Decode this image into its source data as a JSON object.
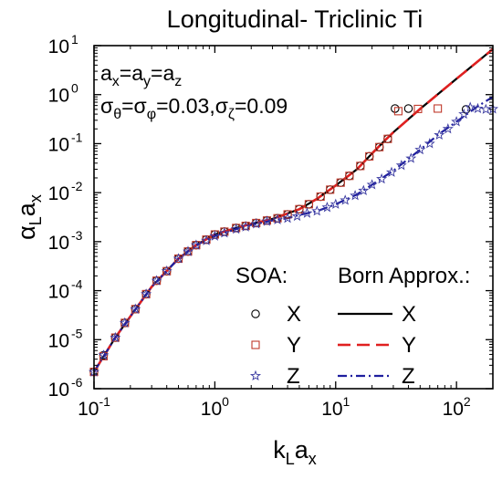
{
  "chart_data": {
    "type": "scatter",
    "title": "Longitudinal- Triclinic Ti",
    "annotation": {
      "line1": {
        "base": "a",
        "parts": [
          [
            "x",
            "=a"
          ],
          [
            "y",
            "=a"
          ],
          [
            "z",
            ""
          ]
        ]
      },
      "line2": {
        "sym": "σ",
        "parts": [
          [
            "θ",
            "=σ"
          ],
          [
            "φ",
            "=0.03,σ"
          ],
          [
            "ζ",
            "=0.09"
          ]
        ]
      }
    },
    "xlabel": {
      "main": "k",
      "sub1": "L",
      "mid": "a",
      "sub2": "x"
    },
    "ylabel": {
      "main": "α",
      "sub1": "L",
      "mid": "a",
      "sub2": "x"
    },
    "x_scale": "log",
    "y_scale": "log",
    "xlim": [
      0.1,
      200
    ],
    "ylim": [
      1e-06,
      10
    ],
    "x_ticks": [
      {
        "v": 0.1,
        "m": "10",
        "e": "-1"
      },
      {
        "v": 1,
        "m": "10",
        "e": "0"
      },
      {
        "v": 10,
        "m": "10",
        "e": "1"
      },
      {
        "v": 100,
        "m": "10",
        "e": "2"
      }
    ],
    "y_ticks": [
      {
        "v": 1e-06,
        "m": "10",
        "e": "-6"
      },
      {
        "v": 1e-05,
        "m": "10",
        "e": "-5"
      },
      {
        "v": 0.0001,
        "m": "10",
        "e": "-4"
      },
      {
        "v": 0.001,
        "m": "10",
        "e": "-3"
      },
      {
        "v": 0.01,
        "m": "10",
        "e": "-2"
      },
      {
        "v": 0.1,
        "m": "10",
        "e": "-1"
      },
      {
        "v": 1,
        "m": "10",
        "e": "0"
      },
      {
        "v": 10,
        "m": "10",
        "e": "1"
      }
    ],
    "legend": {
      "placement": "bottom-right",
      "soa_title": "SOA:",
      "born_title": "Born Approx.:",
      "soa_labels": [
        "X",
        "Y",
        "Z"
      ],
      "born_labels": [
        "X",
        "Y",
        "Z"
      ]
    },
    "grid": false,
    "colors": {
      "X": "#000000",
      "Y": "#e02020",
      "Z": "#1f1f9f",
      "Y_marker": "#c0392b",
      "Z_marker": "#3a3aa0"
    },
    "born_series": [
      {
        "key": "X",
        "style": "solid",
        "points": [
          [
            0.1,
            2.2e-06
          ],
          [
            0.15,
            1.1e-05
          ],
          [
            0.2,
            3e-05
          ],
          [
            0.3,
            0.00012
          ],
          [
            0.5,
            0.00045
          ],
          [
            0.7,
            0.00085
          ],
          [
            1,
            0.0014
          ],
          [
            1.5,
            0.0019
          ],
          [
            2,
            0.0023
          ],
          [
            3,
            0.0029
          ],
          [
            5,
            0.0046
          ],
          [
            7,
            0.0075
          ],
          [
            10,
            0.014
          ],
          [
            15,
            0.03
          ],
          [
            20,
            0.063
          ],
          [
            25,
            0.11
          ],
          [
            30,
            0.17
          ],
          [
            50,
            0.51
          ],
          [
            100,
            2.1
          ],
          [
            200,
            8.5
          ]
        ]
      },
      {
        "key": "Y",
        "style": "dashed",
        "points": [
          [
            0.1,
            2.2e-06
          ],
          [
            0.15,
            1.1e-05
          ],
          [
            0.2,
            3e-05
          ],
          [
            0.3,
            0.00012
          ],
          [
            0.5,
            0.00045
          ],
          [
            0.7,
            0.00085
          ],
          [
            1,
            0.0014
          ],
          [
            1.5,
            0.0019
          ],
          [
            2,
            0.0023
          ],
          [
            3,
            0.0029
          ],
          [
            5,
            0.0046
          ],
          [
            7,
            0.0075
          ],
          [
            10,
            0.014
          ],
          [
            15,
            0.03
          ],
          [
            20,
            0.063
          ],
          [
            25,
            0.11
          ],
          [
            30,
            0.17
          ],
          [
            50,
            0.51
          ],
          [
            100,
            2.1
          ],
          [
            200,
            8.5
          ]
        ]
      },
      {
        "key": "Z",
        "style": "dashdot",
        "points": [
          [
            0.1,
            2.2e-06
          ],
          [
            0.15,
            1.1e-05
          ],
          [
            0.2,
            3e-05
          ],
          [
            0.3,
            0.00012
          ],
          [
            0.5,
            0.00045
          ],
          [
            0.7,
            0.00085
          ],
          [
            1,
            0.0013
          ],
          [
            1.5,
            0.0018
          ],
          [
            2,
            0.0022
          ],
          [
            3,
            0.0027
          ],
          [
            4,
            0.003
          ],
          [
            5,
            0.0035
          ],
          [
            7,
            0.0042
          ],
          [
            10,
            0.0058
          ],
          [
            15,
            0.0092
          ],
          [
            20,
            0.0145
          ],
          [
            30,
            0.028
          ],
          [
            50,
            0.075
          ],
          [
            70,
            0.15
          ],
          [
            100,
            0.28
          ],
          [
            150,
            0.58
          ],
          [
            200,
            0.9
          ]
        ]
      }
    ],
    "soa_series": [
      {
        "key": "X",
        "marker": "circle",
        "points": [
          [
            0.1,
            2.2e-06
          ],
          [
            0.12,
            4.8e-06
          ],
          [
            0.15,
            1.1e-05
          ],
          [
            0.18,
            2.2e-05
          ],
          [
            0.22,
            4.2e-05
          ],
          [
            0.27,
            8.5e-05
          ],
          [
            0.33,
            0.00016
          ],
          [
            0.4,
            0.00025
          ],
          [
            0.5,
            0.00045
          ],
          [
            0.6,
            0.00063
          ],
          [
            0.7,
            0.00085
          ],
          [
            0.85,
            0.0011
          ],
          [
            1,
            0.0014
          ],
          [
            1.2,
            0.0016
          ],
          [
            1.5,
            0.0019
          ],
          [
            1.8,
            0.0021
          ],
          [
            2.2,
            0.0024
          ],
          [
            2.7,
            0.0027
          ],
          [
            3.3,
            0.003
          ],
          [
            4,
            0.0036
          ],
          [
            5,
            0.0046
          ],
          [
            6,
            0.0058
          ],
          [
            7.5,
            0.0083
          ],
          [
            9,
            0.0115
          ],
          [
            11,
            0.016
          ],
          [
            13,
            0.022
          ],
          [
            16,
            0.035
          ],
          [
            19,
            0.055
          ],
          [
            23,
            0.085
          ],
          [
            27,
            0.125
          ],
          [
            31,
            0.52
          ],
          [
            40,
            0.52
          ],
          [
            120,
            0.5
          ]
        ]
      },
      {
        "key": "Y",
        "marker": "square",
        "points": [
          [
            0.1,
            2.2e-06
          ],
          [
            0.12,
            4.6e-06
          ],
          [
            0.15,
            1.1e-05
          ],
          [
            0.18,
            2.2e-05
          ],
          [
            0.22,
            4.2e-05
          ],
          [
            0.27,
            8.5e-05
          ],
          [
            0.33,
            0.00016
          ],
          [
            0.4,
            0.00025
          ],
          [
            0.5,
            0.00045
          ],
          [
            0.6,
            0.00063
          ],
          [
            0.7,
            0.00085
          ],
          [
            0.85,
            0.0011
          ],
          [
            1,
            0.0014
          ],
          [
            1.2,
            0.0016
          ],
          [
            1.5,
            0.0019
          ],
          [
            1.8,
            0.0021
          ],
          [
            2.2,
            0.0024
          ],
          [
            2.7,
            0.0027
          ],
          [
            3.3,
            0.003
          ],
          [
            4,
            0.0036
          ],
          [
            5,
            0.0046
          ],
          [
            6,
            0.0058
          ],
          [
            7.5,
            0.0083
          ],
          [
            9,
            0.0115
          ],
          [
            11,
            0.016
          ],
          [
            13,
            0.022
          ],
          [
            16,
            0.035
          ],
          [
            19,
            0.055
          ],
          [
            23,
            0.085
          ],
          [
            27,
            0.125
          ],
          [
            33,
            0.46
          ],
          [
            48,
            0.51
          ],
          [
            70,
            0.52
          ]
        ]
      },
      {
        "key": "Z",
        "marker": "star",
        "points": [
          [
            0.1,
            2.2e-06
          ],
          [
            0.12,
            4.8e-06
          ],
          [
            0.15,
            1.1e-05
          ],
          [
            0.18,
            2.2e-05
          ],
          [
            0.22,
            4.2e-05
          ],
          [
            0.27,
            8.5e-05
          ],
          [
            0.33,
            0.00016
          ],
          [
            0.4,
            0.00025
          ],
          [
            0.5,
            0.00045
          ],
          [
            0.6,
            0.00063
          ],
          [
            0.7,
            0.00085
          ],
          [
            0.85,
            0.00105
          ],
          [
            1,
            0.0013
          ],
          [
            1.2,
            0.0015
          ],
          [
            1.5,
            0.0018
          ],
          [
            1.8,
            0.002
          ],
          [
            2.2,
            0.0023
          ],
          [
            2.7,
            0.0026
          ],
          [
            3.3,
            0.0028
          ],
          [
            4,
            0.003
          ],
          [
            4.8,
            0.0033
          ],
          [
            5.8,
            0.0038
          ],
          [
            7,
            0.0042
          ],
          [
            8.5,
            0.005
          ],
          [
            10,
            0.0058
          ],
          [
            12,
            0.007
          ],
          [
            14.5,
            0.0087
          ],
          [
            17,
            0.011
          ],
          [
            20,
            0.0145
          ],
          [
            24,
            0.019
          ],
          [
            29,
            0.026
          ],
          [
            35,
            0.036
          ],
          [
            42,
            0.05
          ],
          [
            50,
            0.075
          ],
          [
            60,
            0.1
          ],
          [
            72,
            0.15
          ],
          [
            85,
            0.2
          ],
          [
            100,
            0.28
          ],
          [
            115,
            0.4
          ],
          [
            130,
            0.55
          ],
          [
            150,
            0.52
          ],
          [
            175,
            0.5
          ],
          [
            200,
            0.51
          ]
        ]
      }
    ]
  }
}
